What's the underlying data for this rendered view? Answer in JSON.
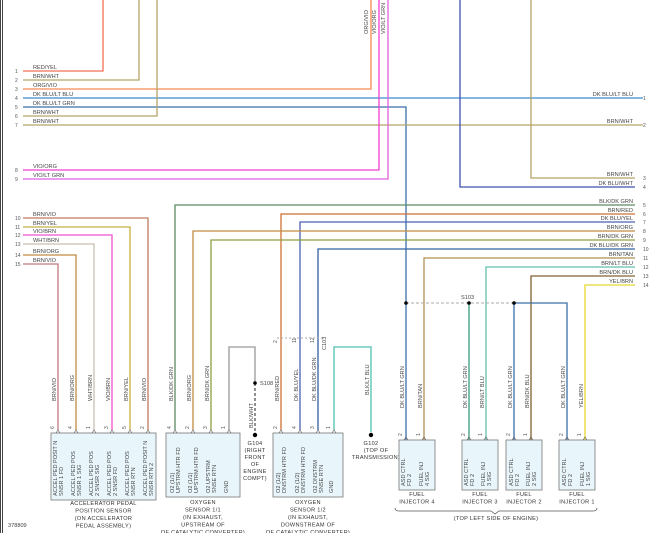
{
  "diagram_id": "378809",
  "left_pins": [
    {
      "pin": "1",
      "label": "RED/YEL",
      "color": "#f07050"
    },
    {
      "pin": "2",
      "label": "BRN/WHT",
      "color": "#b5a468"
    },
    {
      "pin": "3",
      "label": "ORG/VIO",
      "color": "#f58a50"
    },
    {
      "pin": "4",
      "label": "DK BLU/LT BLU",
      "color": "#3a8ad0"
    },
    {
      "pin": "5",
      "label": "DK BLU/LT GRN",
      "color": "#3a6fa8"
    },
    {
      "pin": "6",
      "label": "BRN/WHT",
      "color": "#b5a468"
    },
    {
      "pin": "7",
      "label": "BRN/WHT",
      "color": "#b5a468"
    },
    {
      "pin": "8",
      "label": "VIO/ORG",
      "color": "#f040d0"
    },
    {
      "pin": "9",
      "label": "VIO/LT GRN",
      "color": "#e060e0"
    },
    {
      "pin": "10",
      "label": "BRN/VIO",
      "color": "#c07a60"
    },
    {
      "pin": "11",
      "label": "BRN/YEL",
      "color": "#c8b040"
    },
    {
      "pin": "12",
      "label": "VIO/BRN",
      "color": "#f050d0"
    },
    {
      "pin": "13",
      "label": "WHT/BRN",
      "color": "#c8c0b0"
    },
    {
      "pin": "14",
      "label": "BRN/ORG",
      "color": "#c08a40"
    },
    {
      "pin": "15",
      "label": "BRN/VIO",
      "color": "#c07a80"
    }
  ],
  "top_labels": [
    "ORG/VIO",
    "VIO/ORG",
    "VIO/LT GRN"
  ],
  "right_pins": [
    {
      "pin": "1",
      "label": "DK BLU/LT BLU",
      "color": "#3a8ad0"
    },
    {
      "pin": "2",
      "label": "BRN/WHT",
      "color": "#b5a468"
    },
    {
      "pin": "3",
      "label": "BRN/WHT",
      "color": "#b5a468"
    },
    {
      "pin": "4",
      "label": "DK BLU/WHT",
      "color": "#4050b0"
    },
    {
      "pin": "5",
      "label": "BLK/DK GRN",
      "color": "#5a8a60"
    },
    {
      "pin": "6",
      "label": "BRN/RED",
      "color": "#d07030"
    },
    {
      "pin": "7",
      "label": "DK BLU/YEL",
      "color": "#4a60b0"
    },
    {
      "pin": "8",
      "label": "BRN/ORG",
      "color": "#c08a40"
    },
    {
      "pin": "9",
      "label": "BRN/DK GRN",
      "color": "#8aa040"
    },
    {
      "pin": "10",
      "label": "DK BLU/DK GRN",
      "color": "#3060a0"
    },
    {
      "pin": "11",
      "label": "BRN/TAN",
      "color": "#b09050"
    },
    {
      "pin": "12",
      "label": "BRN/LT BLU",
      "color": "#60c0b0"
    },
    {
      "pin": "13",
      "label": "BRN/DK BLU",
      "color": "#806030"
    },
    {
      "pin": "14",
      "label": "YEL/BRN",
      "color": "#e8d830"
    }
  ],
  "connectors": [
    {
      "name": "ACCELERATOR PEDAL POSITION SENSOR (ON ACCELERATOR PEDAL ASSEMBLY)",
      "caption": [
        "ACCELERATOR PEDAL",
        "POSITION SENSOR",
        "(ON ACCELERATOR",
        "PEDAL ASSEMBLY)"
      ],
      "pins": [
        {
          "pin": "6",
          "wire": "BRN/VIO",
          "func": [
            "ACCEL PED POSIT N",
            "SNSR 1 FD"
          ]
        },
        {
          "pin": "4",
          "wire": "BRN/ORG",
          "func": [
            "ACCEL PED POS",
            "SNSR 1 SIG"
          ]
        },
        {
          "pin": "1",
          "wire": "WHT/BRN",
          "func": [
            "ACCEL PED POS",
            "2 SNSR SIG"
          ]
        },
        {
          "pin": "3",
          "wire": "VIO/BRN",
          "func": [
            "ACCEL PED POS",
            "2 SNSR FD"
          ]
        },
        {
          "pin": "5",
          "wire": "BRN/YEL",
          "func": [
            "ACCEL PED POS",
            "SNSR RTN"
          ]
        },
        {
          "pin": "2",
          "wire": "BRN/VIO",
          "func": [
            "ACCEL PED POSIT N",
            "SNSR RTN 2"
          ]
        }
      ]
    },
    {
      "name": "OXYGEN SENSOR 1/1",
      "caption": [
        "OXYGEN",
        "SENSOR 1/1",
        "(IN EXHAUST,",
        "UPSTREAM OF",
        "OF CATALYTIC CONVERTER)"
      ],
      "pins": [
        {
          "pin": "4",
          "wire": "BLK/DK GRN",
          "func": [
            "O2 (1/1)",
            "UPSTRM HTR FD"
          ]
        },
        {
          "pin": "2",
          "wire": "BRN/ORG",
          "func": [
            "O2 (1/1)",
            "UPSTRM HTR FD"
          ]
        },
        {
          "pin": "3",
          "wire": "BRN/DK GRN",
          "func": [
            "O2 UPSTRM",
            "SNSE RTN"
          ]
        },
        {
          "pin": "1",
          "wire": "BLK/WHT",
          "func": [
            "GND"
          ]
        }
      ]
    },
    {
      "name": "OXYGEN SENSOR 1/2",
      "caption": [
        "OXYGEN",
        "SENSOR 1/2",
        "(IN EXHAUST,",
        "DOWNSTREAM OF",
        "OF CATALYTIC CONVERTER)"
      ],
      "pins": [
        {
          "pin": "2",
          "wire": "BRN/RED",
          "func": [
            "O2 (1/2)",
            "DNSTRM HTR FD"
          ]
        },
        {
          "pin": "4",
          "wire": "DK BLU/YEL",
          "func": [
            "O2 (1/2)",
            "DNSTRM HTR FD"
          ]
        },
        {
          "pin": "3",
          "wire": "DK BLU/DK GRN",
          "func": [
            "O2 DNSTRM",
            "SNSE RTN"
          ]
        },
        {
          "pin": "1",
          "wire": "BLK/LT BLU",
          "func": [
            "GND"
          ]
        }
      ]
    },
    {
      "name": "FUEL INJECTOR 4",
      "caption": [
        "FUEL",
        "INJECTOR 4"
      ],
      "pins": [
        {
          "pin": "2",
          "wire": "DK BLU/LT GRN",
          "func": [
            "ASD CTRL",
            "FD 2"
          ]
        },
        {
          "pin": "1",
          "wire": "BRN/TAN",
          "func": [
            "FUEL INJ",
            "4 SIG"
          ]
        }
      ]
    },
    {
      "name": "FUEL INJECTOR 3",
      "caption": [
        "FUEL",
        "INJECTOR 3"
      ],
      "pins": [
        {
          "pin": "2",
          "wire": "DK BLU/LT GRN",
          "func": [
            "ASD CTRL",
            "FD 2"
          ]
        },
        {
          "pin": "1",
          "wire": "BRN/LT BLU",
          "func": [
            "FUEL INJ",
            "3 SIG"
          ]
        }
      ]
    },
    {
      "name": "FUEL INJECTOR 2",
      "caption": [
        "FUEL",
        "INJECTOR 2"
      ],
      "pins": [
        {
          "pin": "2",
          "wire": "DK BLU/LT GRN",
          "func": [
            "ASD CTRL",
            "FD 2"
          ]
        },
        {
          "pin": "1",
          "wire": "BRN/DK BLU",
          "func": [
            "FUEL INJ",
            "2 SIG"
          ]
        }
      ]
    },
    {
      "name": "FUEL INJECTOR 1",
      "caption": [
        "FUEL",
        "INJECTOR 1"
      ],
      "pins": [
        {
          "pin": "2",
          "wire": "DK BLU/LT GRN",
          "func": [
            "ASD CTRL",
            "FD 2"
          ]
        },
        {
          "pin": "1",
          "wire": "YEL/BRN",
          "func": [
            "FUEL INJ",
            "1 SIG"
          ]
        }
      ]
    }
  ],
  "injector_group_caption": "(TOP LEFT SIDE OF ENGINE)",
  "splices": {
    "s108": "S108",
    "s103": "S103"
  },
  "grounds": {
    "g104": {
      "id": "G104",
      "caption": [
        "(RIGHT",
        "FRONT",
        "OF",
        "ENGINE",
        "COMPT)"
      ]
    },
    "g102": {
      "id": "G102",
      "caption": [
        "(TOP OF",
        "TRANSMISSION)"
      ]
    }
  },
  "inline_connector": {
    "id": "C103",
    "pins": [
      "2",
      "11",
      "12"
    ]
  },
  "gnd_wires": {
    "o2_11": "BLK/WHT",
    "o2_12": "BLK/LT BLU"
  }
}
